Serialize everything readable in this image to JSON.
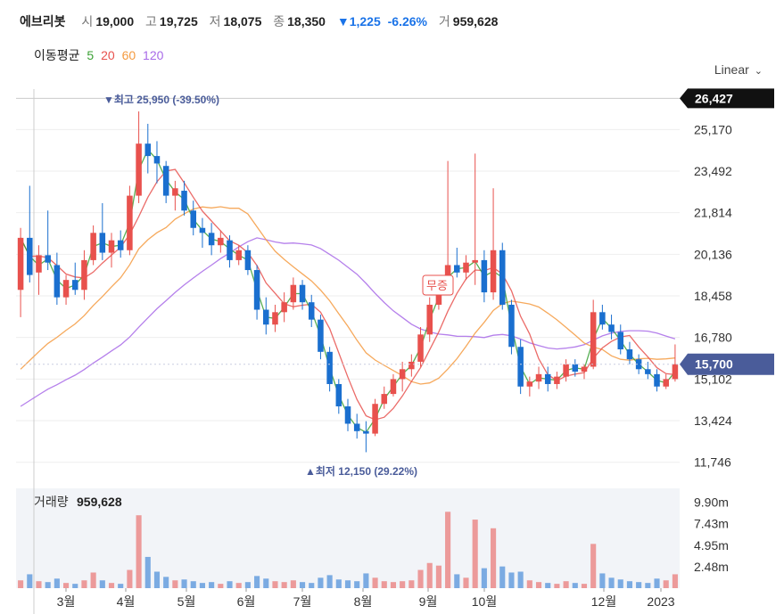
{
  "header": {
    "stock_name": "에브리봇",
    "open_label": "시",
    "open": "19,000",
    "high_label": "고",
    "high": "19,725",
    "low_label": "저",
    "low": "18,075",
    "close_label": "종",
    "close": "18,350",
    "change": "▼1,225",
    "change_pct": "-6.26%",
    "volume_label": "거",
    "volume": "959,628"
  },
  "ma_legend": {
    "title": "이동평균",
    "items": [
      {
        "label": "5",
        "color": "#3ba135"
      },
      {
        "label": "20",
        "color": "#e8514d"
      },
      {
        "label": "60",
        "color": "#f49a3f"
      },
      {
        "label": "120",
        "color": "#a86ae8"
      }
    ]
  },
  "scale_selector": "Linear",
  "chart_data": {
    "type": "candlestick",
    "price_axis": {
      "ticks": [
        "25,170",
        "23,492",
        "21,814",
        "20,136",
        "18,458",
        "16,780",
        "15,102",
        "13,424",
        "11,746"
      ],
      "tick_values": [
        25170,
        23492,
        21814,
        20136,
        18458,
        16780,
        15102,
        13424,
        11746
      ],
      "ylim": [
        10800,
        26800
      ]
    },
    "crosshair_price_label": "26,427",
    "crosshair_price_value": 26427,
    "last_price_label": "15,700",
    "last_price_value": 15700,
    "annotations": {
      "high": "▼최고 25,950 (-39.50%)",
      "low": "▲최저 12,150 (29.22%)",
      "event_badge": "무증"
    },
    "x_labels": [
      "3월",
      "4월",
      "5월",
      "6월",
      "7월",
      "8월",
      "9월",
      "10월",
      "12월",
      "2023"
    ],
    "colors": {
      "up": "#e8514d",
      "down": "#1a6fcf",
      "ma5": "#3ba135",
      "ma20": "#e8514d",
      "ma60": "#f49a3f",
      "ma120": "#a86ae8",
      "price_badge": "#4a5c9a"
    },
    "candles_ohlc_approx": [
      [
        18700,
        21200,
        17600,
        20800
      ],
      [
        20800,
        22900,
        19000,
        19300
      ],
      [
        19400,
        20500,
        18500,
        20100
      ],
      [
        20100,
        21900,
        19500,
        19800
      ],
      [
        19700,
        20200,
        18100,
        18400
      ],
      [
        18400,
        19300,
        18100,
        19100
      ],
      [
        19100,
        19800,
        18500,
        18700
      ],
      [
        18700,
        20300,
        18300,
        19900
      ],
      [
        19900,
        21300,
        19700,
        21000
      ],
      [
        21000,
        22200,
        19900,
        20200
      ],
      [
        20200,
        21000,
        19600,
        20700
      ],
      [
        20700,
        21100,
        20000,
        20300
      ],
      [
        20300,
        22900,
        20100,
        22500
      ],
      [
        22500,
        25900,
        22200,
        24600
      ],
      [
        24600,
        25400,
        23400,
        24100
      ],
      [
        24100,
        24700,
        23000,
        23800
      ],
      [
        23700,
        23900,
        22200,
        22500
      ],
      [
        22500,
        23100,
        21900,
        22800
      ],
      [
        22700,
        23100,
        21700,
        21900
      ],
      [
        21900,
        22300,
        20900,
        21200
      ],
      [
        21200,
        21600,
        20400,
        21000
      ],
      [
        21000,
        21400,
        20100,
        20500
      ],
      [
        20500,
        21100,
        20200,
        20800
      ],
      [
        20700,
        20900,
        19600,
        19900
      ],
      [
        19900,
        20500,
        19700,
        20300
      ],
      [
        20300,
        20500,
        19300,
        19500
      ],
      [
        19500,
        19700,
        17500,
        17900
      ],
      [
        17900,
        18400,
        16900,
        17300
      ],
      [
        17300,
        18100,
        17000,
        17800
      ],
      [
        17800,
        18600,
        17400,
        18200
      ],
      [
        18200,
        19200,
        17900,
        18900
      ],
      [
        18900,
        19100,
        17900,
        18200
      ],
      [
        18200,
        18500,
        17200,
        17500
      ],
      [
        17500,
        17700,
        15900,
        16200
      ],
      [
        16200,
        16400,
        14600,
        14900
      ],
      [
        14900,
        15100,
        13700,
        14000
      ],
      [
        14000,
        14300,
        13000,
        13300
      ],
      [
        13300,
        13700,
        12700,
        13000
      ],
      [
        13000,
        13400,
        12150,
        12900
      ],
      [
        12900,
        14300,
        12800,
        14100
      ],
      [
        14100,
        14800,
        13900,
        14500
      ],
      [
        14500,
        15300,
        14400,
        15100
      ],
      [
        15100,
        15800,
        14600,
        15500
      ],
      [
        15500,
        16100,
        15200,
        15800
      ],
      [
        15800,
        17200,
        15600,
        16900
      ],
      [
        16900,
        18400,
        16600,
        18100
      ],
      [
        18100,
        19300,
        17900,
        18700
      ],
      [
        18700,
        23900,
        18500,
        19700
      ],
      [
        19700,
        20400,
        19200,
        19400
      ],
      [
        19400,
        20100,
        19100,
        19800
      ],
      [
        19800,
        24200,
        18900,
        19900
      ],
      [
        19900,
        20300,
        18200,
        18600
      ],
      [
        18600,
        22800,
        18300,
        20300
      ],
      [
        20300,
        20600,
        17900,
        18100
      ],
      [
        18100,
        18300,
        16100,
        16400
      ],
      [
        16400,
        16700,
        14500,
        14800
      ],
      [
        14800,
        15200,
        14400,
        15000
      ],
      [
        15000,
        15600,
        14700,
        15300
      ],
      [
        15300,
        15600,
        14600,
        14900
      ],
      [
        14900,
        15400,
        14700,
        15200
      ],
      [
        15200,
        15900,
        15000,
        15700
      ],
      [
        15700,
        15900,
        15200,
        15400
      ],
      [
        15400,
        15700,
        15100,
        15600
      ],
      [
        15600,
        18300,
        15500,
        17800
      ],
      [
        17800,
        18100,
        17100,
        17300
      ],
      [
        17300,
        17700,
        16700,
        17000
      ],
      [
        17000,
        17300,
        16100,
        16300
      ],
      [
        16300,
        16600,
        15700,
        15900
      ],
      [
        15900,
        16100,
        15300,
        15500
      ],
      [
        15500,
        15800,
        15100,
        15300
      ],
      [
        15300,
        15500,
        14600,
        14800
      ],
      [
        14800,
        15300,
        14700,
        15100
      ],
      [
        15100,
        16500,
        15000,
        15700
      ]
    ],
    "volume_axis": {
      "ticks": [
        "9.90m",
        "7.43m",
        "4.95m",
        "2.48m"
      ],
      "tick_values": [
        9900000,
        7430000,
        4950000,
        2480000
      ],
      "ylim": [
        0,
        11500000
      ]
    },
    "volume_label": "거래량",
    "volume_value": "959,628",
    "volumes_m": [
      0.9,
      1.6,
      0.8,
      0.7,
      1.1,
      0.6,
      0.5,
      0.9,
      1.8,
      0.9,
      0.6,
      0.5,
      2.1,
      8.4,
      3.6,
      1.9,
      1.3,
      0.9,
      1.0,
      0.8,
      0.6,
      0.7,
      0.5,
      0.8,
      0.6,
      0.7,
      1.4,
      1.1,
      0.8,
      0.7,
      0.9,
      0.7,
      0.6,
      1.2,
      1.5,
      1.0,
      0.9,
      0.8,
      1.7,
      1.2,
      0.8,
      0.7,
      0.8,
      0.9,
      2.1,
      2.9,
      2.6,
      8.8,
      1.6,
      1.2,
      7.9,
      2.3,
      6.9,
      2.5,
      1.8,
      1.9,
      0.9,
      0.7,
      0.6,
      0.5,
      0.8,
      0.6,
      0.5,
      5.1,
      1.7,
      1.2,
      1.0,
      0.8,
      0.7,
      0.6,
      1.1,
      0.9,
      1.6
    ]
  }
}
